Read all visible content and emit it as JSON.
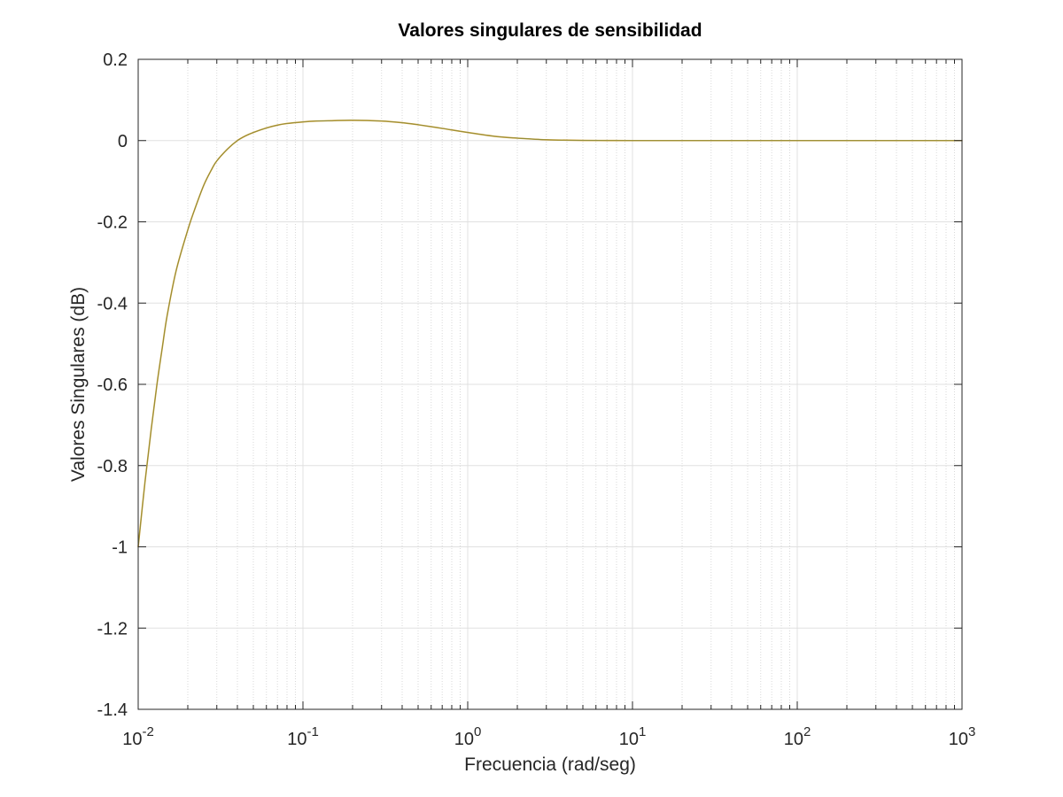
{
  "chart_data": {
    "type": "line",
    "title": "Valores singulares de sensibilidad",
    "xlabel": "Frecuencia (rad/seg)",
    "ylabel": "Valores Singulares (dB)",
    "x_scale": "log",
    "xlim": [
      0.01,
      1000
    ],
    "ylim": [
      -1.4,
      0.2
    ],
    "grid": true,
    "x_ticks": [
      {
        "value": 0.01,
        "base": "10",
        "exp": "-2"
      },
      {
        "value": 0.1,
        "base": "10",
        "exp": "-1"
      },
      {
        "value": 1,
        "base": "10",
        "exp": "0"
      },
      {
        "value": 10,
        "base": "10",
        "exp": "1"
      },
      {
        "value": 100,
        "base": "10",
        "exp": "2"
      },
      {
        "value": 1000,
        "base": "10",
        "exp": "3"
      }
    ],
    "y_ticks": [
      {
        "value": 0.2,
        "label": "0.2"
      },
      {
        "value": 0,
        "label": "0"
      },
      {
        "value": -0.2,
        "label": "-0.2"
      },
      {
        "value": -0.4,
        "label": "-0.4"
      },
      {
        "value": -0.6,
        "label": "-0.6"
      },
      {
        "value": -0.8,
        "label": "-0.8"
      },
      {
        "value": -1,
        "label": "-1"
      },
      {
        "value": -1.2,
        "label": "-1.2"
      },
      {
        "value": -1.4,
        "label": "-1.4"
      }
    ],
    "series": [
      {
        "color": "#D4A033",
        "x": [
          0.01,
          0.011,
          0.012,
          0.013,
          0.014,
          0.015,
          0.017,
          0.02,
          0.022,
          0.025,
          0.028,
          0.03,
          0.035,
          0.04,
          0.045,
          0.05,
          0.06,
          0.07,
          0.08,
          0.1,
          0.12,
          0.15,
          0.2,
          0.3,
          0.4,
          0.5,
          0.7,
          1,
          1.5,
          2,
          3,
          5,
          7,
          10,
          20,
          50,
          100,
          200,
          500,
          1000
        ],
        "y": [
          -1.0,
          -0.84,
          -0.71,
          -0.6,
          -0.51,
          -0.43,
          -0.32,
          -0.22,
          -0.17,
          -0.11,
          -0.07,
          -0.05,
          -0.02,
          0.0,
          0.012,
          0.02,
          0.031,
          0.038,
          0.042,
          0.046,
          0.048,
          0.049,
          0.05,
          0.048,
          0.044,
          0.039,
          0.03,
          0.02,
          0.01,
          0.006,
          0.002,
          0.0005,
          0.0002,
          0.0,
          0.0,
          0.0,
          0.0,
          0.0,
          0.0,
          0.0
        ]
      },
      {
        "color": "#8C8C3A",
        "x": [
          0.01,
          0.011,
          0.012,
          0.013,
          0.014,
          0.015,
          0.017,
          0.02,
          0.022,
          0.025,
          0.028,
          0.03,
          0.035,
          0.04,
          0.045,
          0.05,
          0.06,
          0.07,
          0.08,
          0.1,
          0.12,
          0.15,
          0.2,
          0.3,
          0.4,
          0.5,
          0.7,
          1,
          1.5,
          2,
          3,
          5,
          7,
          10,
          20,
          50,
          100,
          200,
          500,
          1000
        ],
        "y": [
          -1.0,
          -0.84,
          -0.71,
          -0.6,
          -0.51,
          -0.43,
          -0.32,
          -0.22,
          -0.17,
          -0.11,
          -0.07,
          -0.05,
          -0.02,
          0.0,
          0.012,
          0.02,
          0.031,
          0.038,
          0.042,
          0.046,
          0.048,
          0.049,
          0.05,
          0.048,
          0.044,
          0.039,
          0.03,
          0.02,
          0.01,
          0.006,
          0.002,
          0.0005,
          0.0002,
          0.0,
          0.0,
          0.0,
          0.0,
          0.0,
          0.0,
          0.0
        ]
      }
    ]
  }
}
